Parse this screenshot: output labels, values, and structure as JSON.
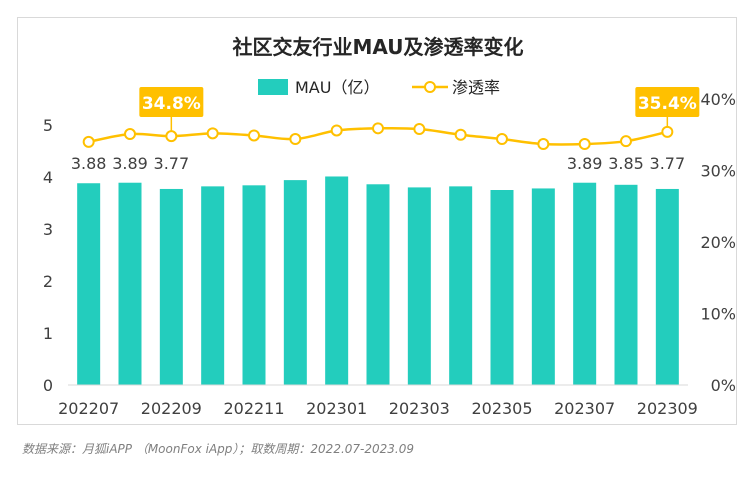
{
  "source_note": "数据来源：月狐iAPP （MoonFox iApp）；取数周期：2022.07-2023.09",
  "chart_data": {
    "type": "bar+line",
    "title": "社区交友行业MAU及渗透率变化",
    "categories": [
      "202207",
      "202208",
      "202209",
      "202210",
      "202211",
      "202212",
      "202301",
      "202302",
      "202303",
      "202304",
      "202305",
      "202306",
      "202307",
      "202308",
      "202309"
    ],
    "x_tick_labels": [
      "202207",
      "202209",
      "202211",
      "202301",
      "202303",
      "202305",
      "202307",
      "202309"
    ],
    "series": [
      {
        "name": "MAU（亿）",
        "type": "bar",
        "axis": "left",
        "color": "#23cdbd",
        "values": [
          3.88,
          3.89,
          3.77,
          3.82,
          3.84,
          3.94,
          4.01,
          3.86,
          3.8,
          3.82,
          3.75,
          3.78,
          3.89,
          3.85,
          3.77
        ],
        "data_labels": [
          {
            "index": 0,
            "text": "3.88"
          },
          {
            "index": 1,
            "text": "3.89"
          },
          {
            "index": 2,
            "text": "3.77"
          },
          {
            "index": 12,
            "text": "3.89"
          },
          {
            "index": 13,
            "text": "3.85"
          },
          {
            "index": 14,
            "text": "3.77"
          }
        ]
      },
      {
        "name": "渗透率",
        "type": "line",
        "axis": "right",
        "color": "#ffc000",
        "values": [
          34.0,
          35.1,
          34.8,
          35.2,
          34.9,
          34.4,
          35.6,
          35.9,
          35.8,
          35.0,
          34.4,
          33.7,
          33.7,
          34.1,
          35.4
        ],
        "callouts": [
          {
            "index": 2,
            "text": "34.8%"
          },
          {
            "index": 14,
            "text": "35.4%"
          }
        ]
      }
    ],
    "y_left": {
      "min": 0,
      "max": 5,
      "ticks": [
        "0",
        "1",
        "2",
        "3",
        "4",
        "5"
      ]
    },
    "y_right": {
      "min": 0,
      "max": 40,
      "ticks": [
        "0%",
        "10%",
        "20%",
        "30%",
        "40%"
      ]
    },
    "legend_position": "top-center",
    "grid": false
  }
}
